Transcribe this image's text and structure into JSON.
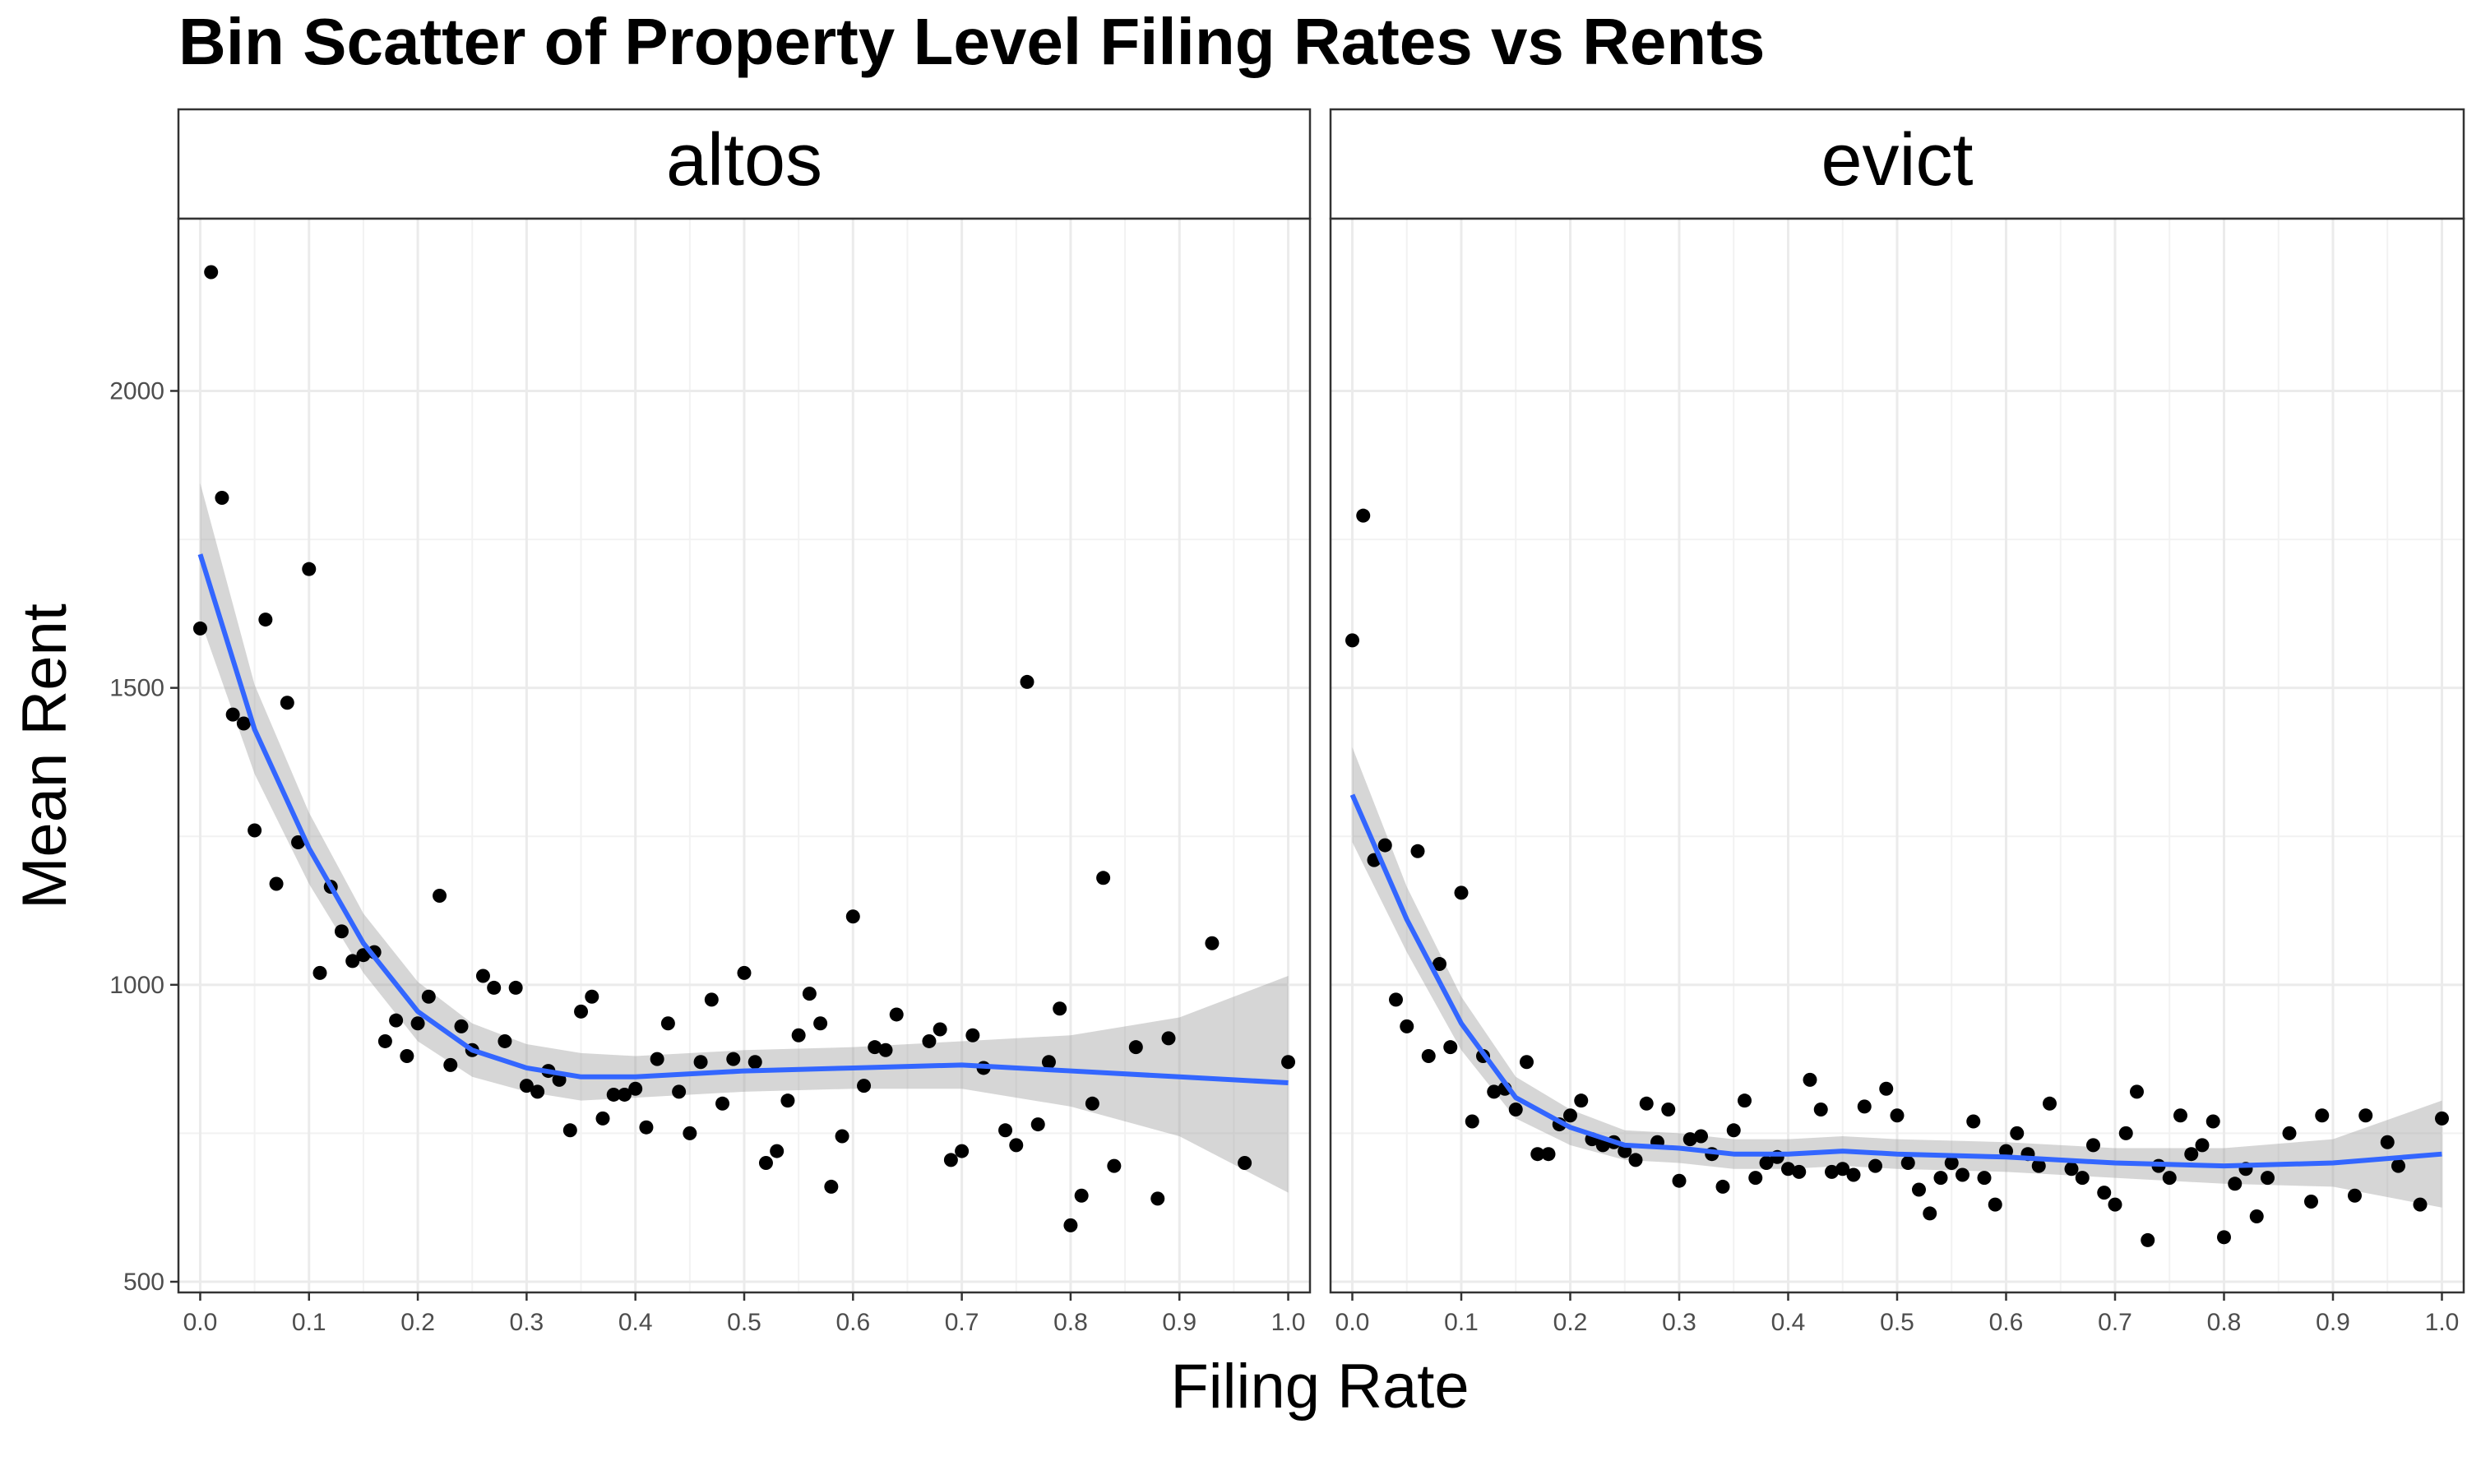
{
  "chart_data": {
    "type": "scatter",
    "title": "Bin Scatter of Property Level Filing Rates vs Rents",
    "xlabel": "Filing Rate",
    "ylabel": "Mean Rent",
    "xlim": [
      -0.02,
      1.02
    ],
    "ylim": [
      482,
      2290
    ],
    "x_ticks": [
      0.0,
      0.1,
      0.2,
      0.3,
      0.4,
      0.5,
      0.6,
      0.7,
      0.8,
      0.9,
      1.0
    ],
    "x_tick_labels": [
      "0.0",
      "0.1",
      "0.2",
      "0.3",
      "0.4",
      "0.5",
      "0.6",
      "0.7",
      "0.8",
      "0.9",
      "1.0"
    ],
    "y_ticks": [
      500,
      1000,
      1500,
      2000
    ],
    "y_tick_labels": [
      "500",
      "1000",
      "1500",
      "2000"
    ],
    "grid": true,
    "point_color": "#000000",
    "smooth_color": "#3366FF",
    "band_color": "#999999",
    "facets": [
      {
        "label": "altos",
        "points": [
          [
            0.0,
            1600
          ],
          [
            0.01,
            2200
          ],
          [
            0.02,
            1820
          ],
          [
            0.03,
            1455
          ],
          [
            0.04,
            1440
          ],
          [
            0.05,
            1260
          ],
          [
            0.06,
            1615
          ],
          [
            0.07,
            1170
          ],
          [
            0.08,
            1475
          ],
          [
            0.09,
            1240
          ],
          [
            0.1,
            1700
          ],
          [
            0.11,
            1020
          ],
          [
            0.12,
            1165
          ],
          [
            0.13,
            1090
          ],
          [
            0.14,
            1040
          ],
          [
            0.15,
            1050
          ],
          [
            0.16,
            1055
          ],
          [
            0.17,
            905
          ],
          [
            0.18,
            940
          ],
          [
            0.19,
            880
          ],
          [
            0.2,
            935
          ],
          [
            0.21,
            980
          ],
          [
            0.22,
            1150
          ],
          [
            0.23,
            865
          ],
          [
            0.24,
            930
          ],
          [
            0.25,
            890
          ],
          [
            0.26,
            1015
          ],
          [
            0.27,
            995
          ],
          [
            0.28,
            905
          ],
          [
            0.29,
            995
          ],
          [
            0.3,
            830
          ],
          [
            0.31,
            820
          ],
          [
            0.32,
            855
          ],
          [
            0.33,
            840
          ],
          [
            0.34,
            755
          ],
          [
            0.35,
            955
          ],
          [
            0.36,
            980
          ],
          [
            0.37,
            775
          ],
          [
            0.38,
            815
          ],
          [
            0.39,
            815
          ],
          [
            0.4,
            825
          ],
          [
            0.41,
            760
          ],
          [
            0.42,
            875
          ],
          [
            0.43,
            935
          ],
          [
            0.44,
            820
          ],
          [
            0.45,
            750
          ],
          [
            0.46,
            870
          ],
          [
            0.47,
            975
          ],
          [
            0.48,
            800
          ],
          [
            0.49,
            875
          ],
          [
            0.5,
            1020
          ],
          [
            0.51,
            870
          ],
          [
            0.52,
            700
          ],
          [
            0.53,
            720
          ],
          [
            0.54,
            805
          ],
          [
            0.55,
            915
          ],
          [
            0.56,
            985
          ],
          [
            0.57,
            935
          ],
          [
            0.58,
            660
          ],
          [
            0.59,
            745
          ],
          [
            0.6,
            1115
          ],
          [
            0.61,
            830
          ],
          [
            0.62,
            895
          ],
          [
            0.63,
            890
          ],
          [
            0.64,
            950
          ],
          [
            0.67,
            905
          ],
          [
            0.68,
            925
          ],
          [
            0.69,
            705
          ],
          [
            0.7,
            720
          ],
          [
            0.71,
            915
          ],
          [
            0.72,
            860
          ],
          [
            0.74,
            755
          ],
          [
            0.75,
            730
          ],
          [
            0.76,
            1510
          ],
          [
            0.77,
            765
          ],
          [
            0.78,
            870
          ],
          [
            0.79,
            960
          ],
          [
            0.8,
            595
          ],
          [
            0.81,
            645
          ],
          [
            0.82,
            800
          ],
          [
            0.83,
            1180
          ],
          [
            0.84,
            695
          ],
          [
            0.86,
            895
          ],
          [
            0.88,
            640
          ],
          [
            0.89,
            910
          ],
          [
            0.93,
            1070
          ],
          [
            0.96,
            700
          ],
          [
            1.0,
            870
          ]
        ],
        "smooth": [
          [
            0.0,
            1725
          ],
          [
            0.05,
            1430
          ],
          [
            0.1,
            1230
          ],
          [
            0.15,
            1070
          ],
          [
            0.2,
            955
          ],
          [
            0.25,
            890
          ],
          [
            0.3,
            860
          ],
          [
            0.35,
            845
          ],
          [
            0.4,
            845
          ],
          [
            0.5,
            855
          ],
          [
            0.6,
            860
          ],
          [
            0.7,
            865
          ],
          [
            0.8,
            855
          ],
          [
            0.9,
            845
          ],
          [
            1.0,
            835
          ]
        ],
        "band": [
          [
            0.0,
            1615,
            1845
          ],
          [
            0.05,
            1355,
            1505
          ],
          [
            0.1,
            1170,
            1290
          ],
          [
            0.15,
            1020,
            1120
          ],
          [
            0.2,
            905,
            1005
          ],
          [
            0.25,
            845,
            935
          ],
          [
            0.3,
            820,
            900
          ],
          [
            0.35,
            805,
            885
          ],
          [
            0.4,
            810,
            880
          ],
          [
            0.5,
            820,
            890
          ],
          [
            0.6,
            825,
            895
          ],
          [
            0.7,
            825,
            905
          ],
          [
            0.8,
            795,
            915
          ],
          [
            0.9,
            745,
            945
          ],
          [
            1.0,
            650,
            1015
          ]
        ]
      },
      {
        "label": "evict",
        "points": [
          [
            0.0,
            1580
          ],
          [
            0.01,
            1790
          ],
          [
            0.02,
            1210
          ],
          [
            0.03,
            1235
          ],
          [
            0.04,
            975
          ],
          [
            0.05,
            930
          ],
          [
            0.06,
            1225
          ],
          [
            0.07,
            880
          ],
          [
            0.08,
            1035
          ],
          [
            0.09,
            895
          ],
          [
            0.1,
            1155
          ],
          [
            0.11,
            770
          ],
          [
            0.12,
            880
          ],
          [
            0.13,
            820
          ],
          [
            0.14,
            825
          ],
          [
            0.15,
            790
          ],
          [
            0.16,
            870
          ],
          [
            0.17,
            715
          ],
          [
            0.18,
            715
          ],
          [
            0.19,
            765
          ],
          [
            0.2,
            780
          ],
          [
            0.21,
            805
          ],
          [
            0.22,
            740
          ],
          [
            0.23,
            730
          ],
          [
            0.24,
            735
          ],
          [
            0.25,
            720
          ],
          [
            0.26,
            705
          ],
          [
            0.27,
            800
          ],
          [
            0.28,
            735
          ],
          [
            0.29,
            790
          ],
          [
            0.3,
            670
          ],
          [
            0.31,
            740
          ],
          [
            0.32,
            745
          ],
          [
            0.33,
            715
          ],
          [
            0.34,
            660
          ],
          [
            0.35,
            755
          ],
          [
            0.36,
            805
          ],
          [
            0.37,
            675
          ],
          [
            0.38,
            700
          ],
          [
            0.39,
            710
          ],
          [
            0.4,
            690
          ],
          [
            0.41,
            685
          ],
          [
            0.42,
            840
          ],
          [
            0.43,
            790
          ],
          [
            0.44,
            685
          ],
          [
            0.45,
            690
          ],
          [
            0.46,
            680
          ],
          [
            0.47,
            795
          ],
          [
            0.48,
            695
          ],
          [
            0.49,
            825
          ],
          [
            0.5,
            780
          ],
          [
            0.51,
            700
          ],
          [
            0.52,
            655
          ],
          [
            0.53,
            615
          ],
          [
            0.54,
            675
          ],
          [
            0.55,
            700
          ],
          [
            0.56,
            680
          ],
          [
            0.57,
            770
          ],
          [
            0.58,
            675
          ],
          [
            0.59,
            630
          ],
          [
            0.6,
            720
          ],
          [
            0.61,
            750
          ],
          [
            0.62,
            715
          ],
          [
            0.63,
            695
          ],
          [
            0.64,
            800
          ],
          [
            0.66,
            690
          ],
          [
            0.67,
            675
          ],
          [
            0.68,
            730
          ],
          [
            0.69,
            650
          ],
          [
            0.7,
            630
          ],
          [
            0.71,
            750
          ],
          [
            0.72,
            820
          ],
          [
            0.73,
            570
          ],
          [
            0.74,
            695
          ],
          [
            0.75,
            675
          ],
          [
            0.76,
            780
          ],
          [
            0.77,
            715
          ],
          [
            0.78,
            730
          ],
          [
            0.79,
            770
          ],
          [
            0.8,
            575
          ],
          [
            0.81,
            665
          ],
          [
            0.82,
            690
          ],
          [
            0.83,
            610
          ],
          [
            0.84,
            675
          ],
          [
            0.86,
            750
          ],
          [
            0.88,
            635
          ],
          [
            0.89,
            780
          ],
          [
            0.92,
            645
          ],
          [
            0.93,
            780
          ],
          [
            0.95,
            735
          ],
          [
            0.96,
            695
          ],
          [
            0.98,
            630
          ],
          [
            1.0,
            775
          ]
        ],
        "smooth": [
          [
            0.0,
            1320
          ],
          [
            0.05,
            1110
          ],
          [
            0.1,
            935
          ],
          [
            0.15,
            810
          ],
          [
            0.2,
            760
          ],
          [
            0.25,
            730
          ],
          [
            0.3,
            725
          ],
          [
            0.35,
            715
          ],
          [
            0.4,
            715
          ],
          [
            0.45,
            720
          ],
          [
            0.5,
            715
          ],
          [
            0.6,
            710
          ],
          [
            0.7,
            700
          ],
          [
            0.8,
            695
          ],
          [
            0.9,
            700
          ],
          [
            1.0,
            715
          ]
        ],
        "band": [
          [
            0.0,
            1240,
            1400
          ],
          [
            0.05,
            1055,
            1165
          ],
          [
            0.1,
            890,
            980
          ],
          [
            0.15,
            775,
            845
          ],
          [
            0.2,
            730,
            790
          ],
          [
            0.25,
            705,
            755
          ],
          [
            0.3,
            700,
            750
          ],
          [
            0.35,
            690,
            740
          ],
          [
            0.4,
            690,
            740
          ],
          [
            0.45,
            695,
            745
          ],
          [
            0.5,
            690,
            740
          ],
          [
            0.6,
            685,
            735
          ],
          [
            0.7,
            675,
            725
          ],
          [
            0.8,
            665,
            725
          ],
          [
            0.9,
            660,
            740
          ],
          [
            1.0,
            625,
            805
          ]
        ]
      }
    ]
  }
}
